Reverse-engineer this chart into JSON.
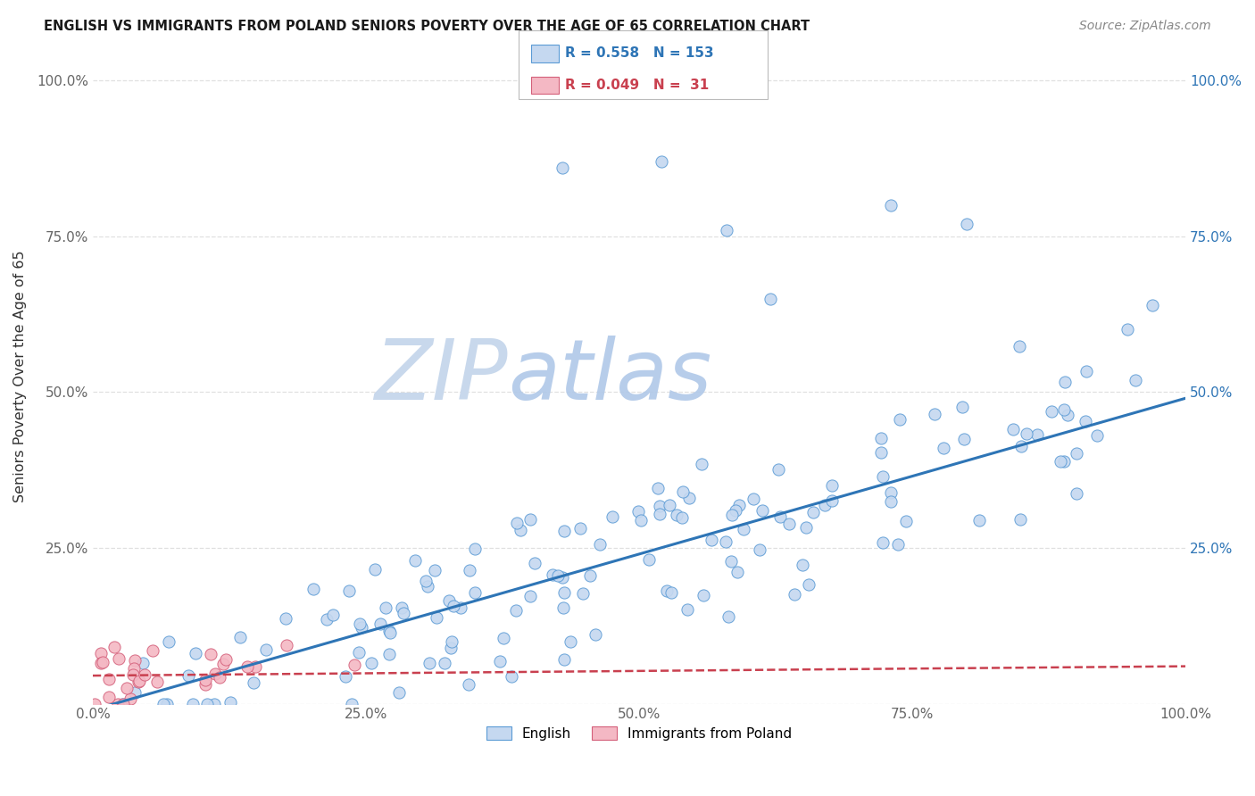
{
  "title": "ENGLISH VS IMMIGRANTS FROM POLAND SENIORS POVERTY OVER THE AGE OF 65 CORRELATION CHART",
  "source": "Source: ZipAtlas.com",
  "ylabel": "Seniors Poverty Over the Age of 65",
  "english_R": 0.558,
  "english_N": 153,
  "poland_R": 0.049,
  "poland_N": 31,
  "english_color": "#c5d8f0",
  "english_edge_color": "#5b9bd5",
  "poland_color": "#f4b8c4",
  "poland_edge_color": "#d45f7a",
  "english_line_color": "#2e75b6",
  "poland_line_color": "#c9404f",
  "legend_R_color": "#2e75b6",
  "legend_R2_color": "#c9404f",
  "background_color": "#ffffff",
  "watermark_color_ZIP": "#c8d8ec",
  "watermark_color_atlas": "#c8d8ec",
  "right_tick_color": "#2e75b6",
  "grid_color": "#e0e0e0",
  "title_color": "#1a1a1a",
  "source_color": "#888888",
  "ylabel_color": "#333333",
  "tick_color": "#666666",
  "eng_trend_slope": 0.5,
  "eng_trend_intercept": -0.01,
  "pol_trend_slope": 0.015,
  "pol_trend_intercept": 0.045,
  "seed": 7
}
